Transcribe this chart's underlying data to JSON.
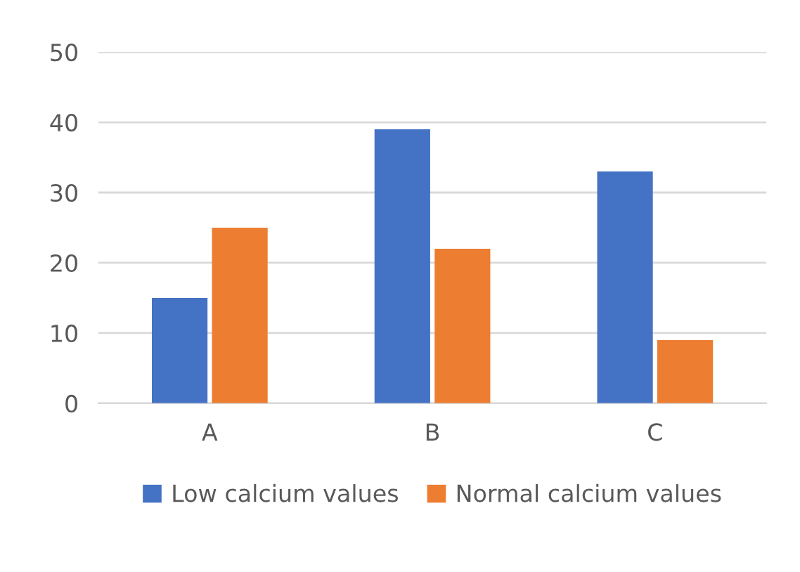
{
  "chart_data": {
    "type": "bar",
    "categories": [
      "A",
      "B",
      "C"
    ],
    "series": [
      {
        "name": "Low calcium values",
        "color": "#4472c4",
        "values": [
          15,
          39,
          33
        ]
      },
      {
        "name": "Normal calcium values",
        "color": "#ed7d31",
        "values": [
          25,
          22,
          9
        ]
      }
    ],
    "ylim": [
      0,
      50
    ],
    "yticks": [
      0,
      10,
      20,
      30,
      40,
      50
    ],
    "grid": "y",
    "legend": "bottom"
  }
}
